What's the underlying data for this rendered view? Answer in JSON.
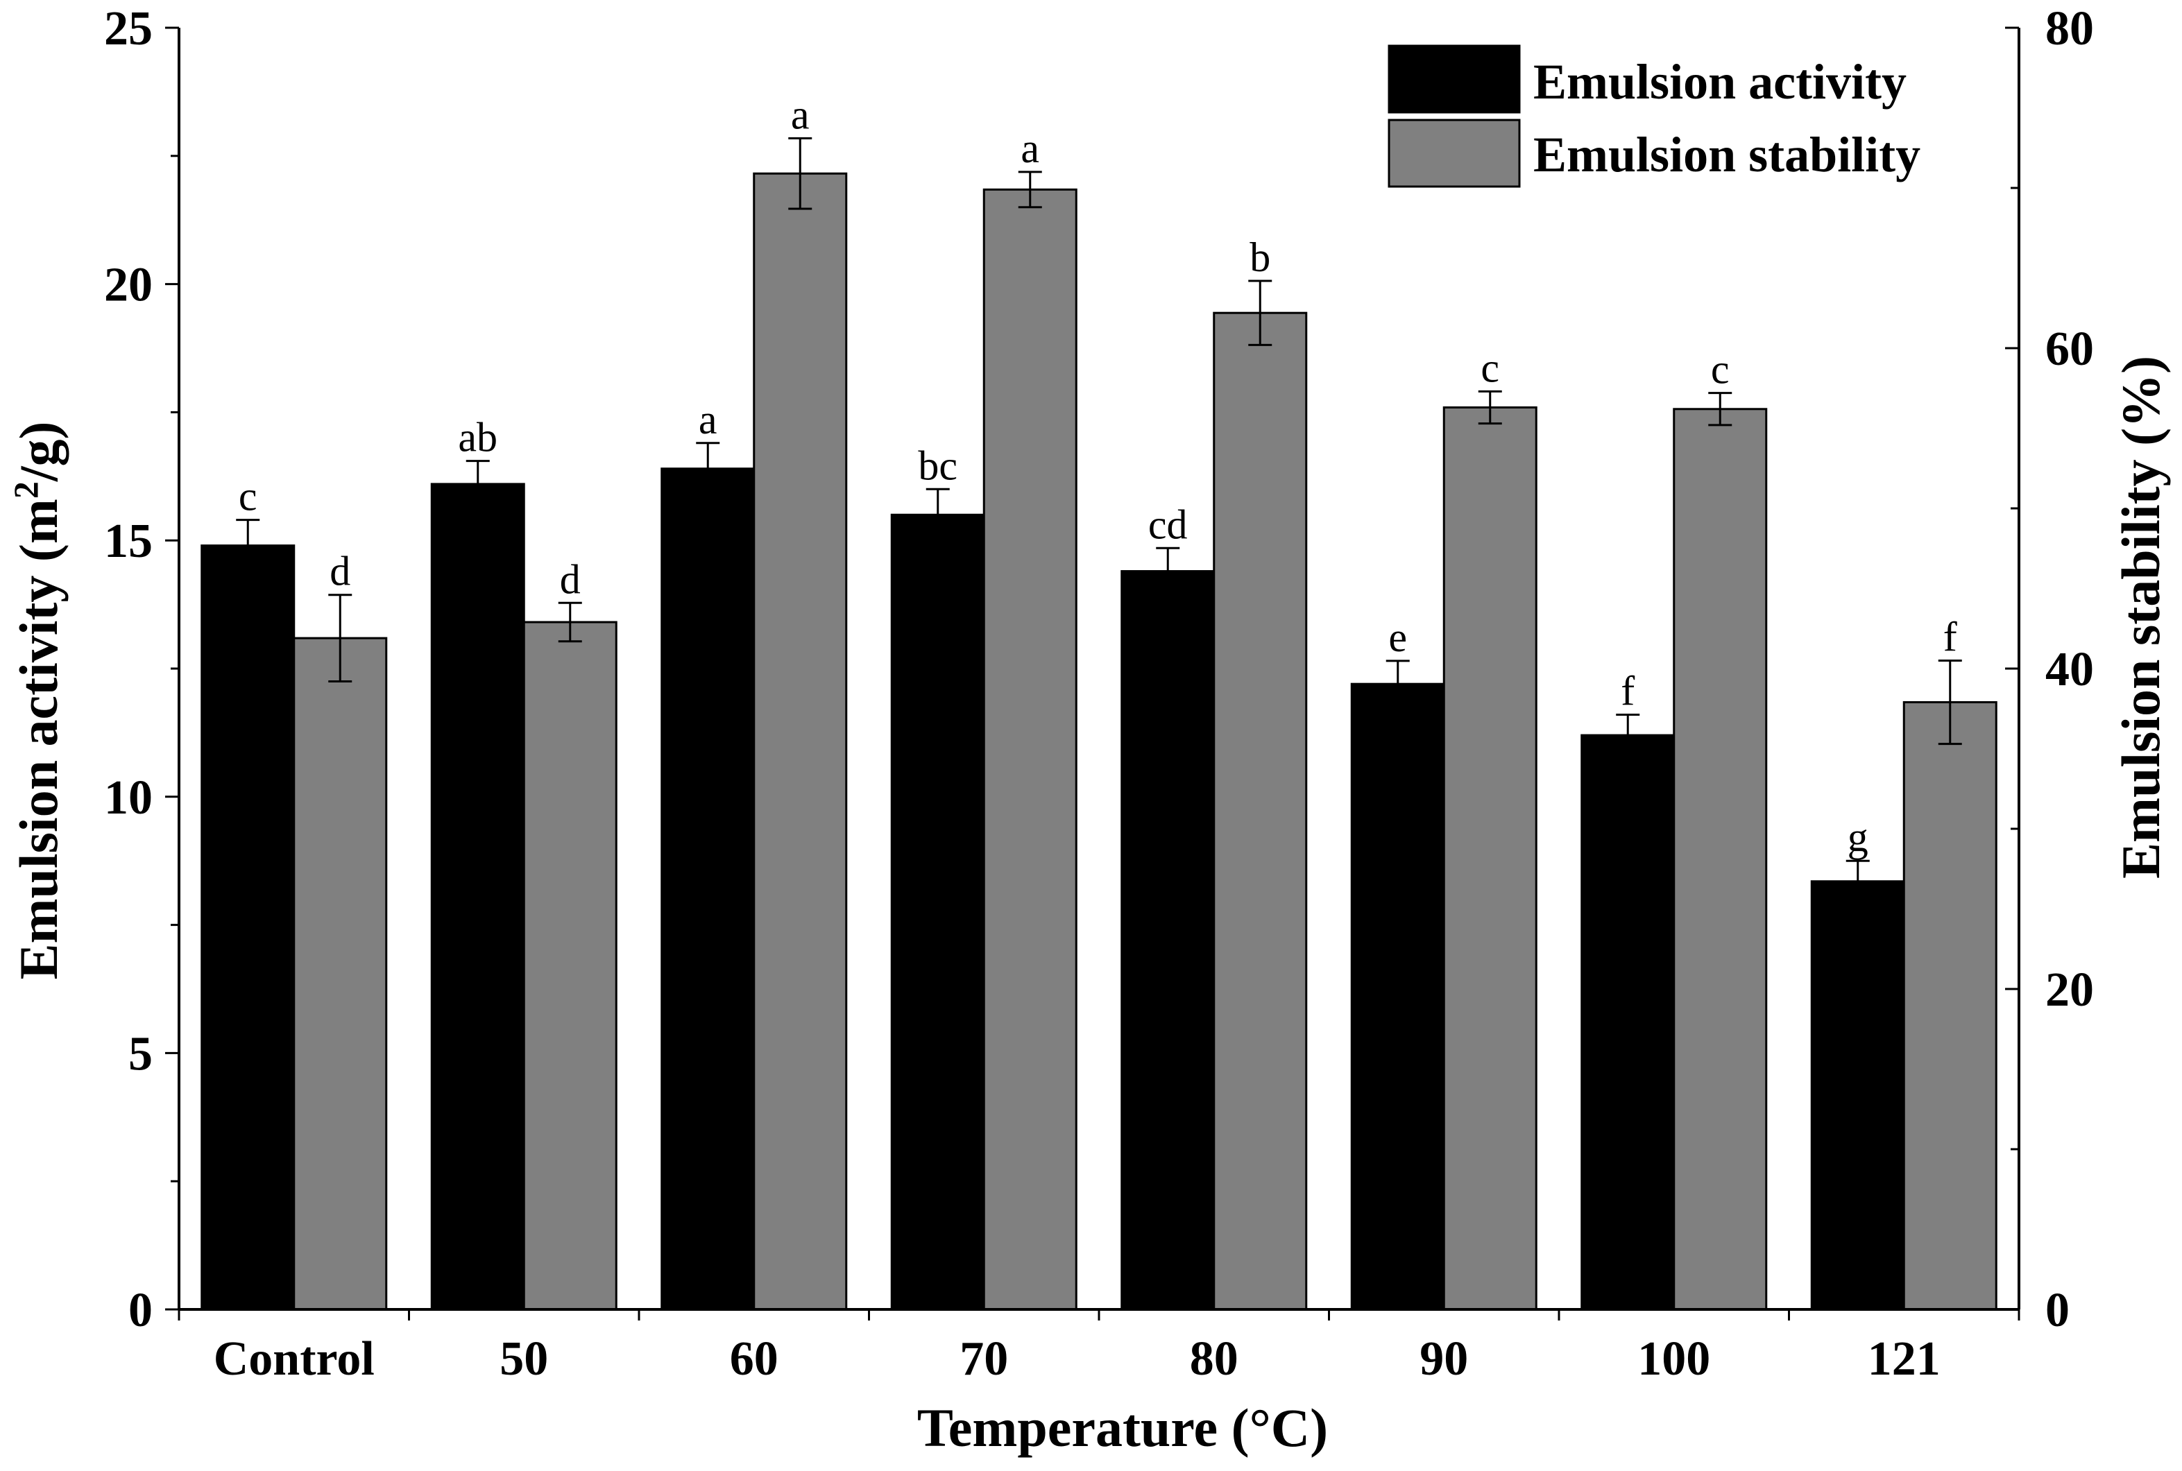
{
  "chart_data": {
    "type": "bar",
    "xlabel": "Temperature (°C)",
    "ylabel_left": {
      "main": "Emulsion activity (m",
      "sup": "2",
      "rest": "/g)"
    },
    "ylabel_right": "Emulsion stability  (%)",
    "categories": [
      "Control",
      "50",
      "60",
      "70",
      "80",
      "90",
      "100",
      "121"
    ],
    "y_left": {
      "lim": [
        0,
        25
      ],
      "ticks": [
        "0",
        "5",
        "10",
        "15",
        "20",
        "25"
      ]
    },
    "y_right": {
      "lim": [
        0,
        80
      ],
      "ticks": [
        "0",
        "20",
        "40",
        "60",
        "80"
      ]
    },
    "series": [
      {
        "name": "Emulsion activity",
        "axis": "left",
        "color": "#000000",
        "values": [
          14.9,
          16.1,
          16.4,
          15.5,
          14.4,
          12.2,
          11.2,
          8.35
        ],
        "errors": [
          0.5,
          0.45,
          0.5,
          0.5,
          0.45,
          0.45,
          0.4,
          0.4
        ],
        "labels": [
          "c",
          "ab",
          "a",
          "bc",
          "cd",
          "e",
          "f",
          "g"
        ]
      },
      {
        "name": "Emulsion stability",
        "axis": "right",
        "color": "#808080",
        "values": [
          41.9,
          42.9,
          70.9,
          69.9,
          62.2,
          56.3,
          56.2,
          37.9
        ],
        "errors": [
          2.7,
          1.2,
          2.2,
          1.1,
          2.0,
          1.0,
          1.0,
          2.6
        ],
        "labels": [
          "d",
          "d",
          "a",
          "a",
          "b",
          "c",
          "c",
          "f"
        ]
      }
    ],
    "legend": "top-right",
    "grid": false
  }
}
